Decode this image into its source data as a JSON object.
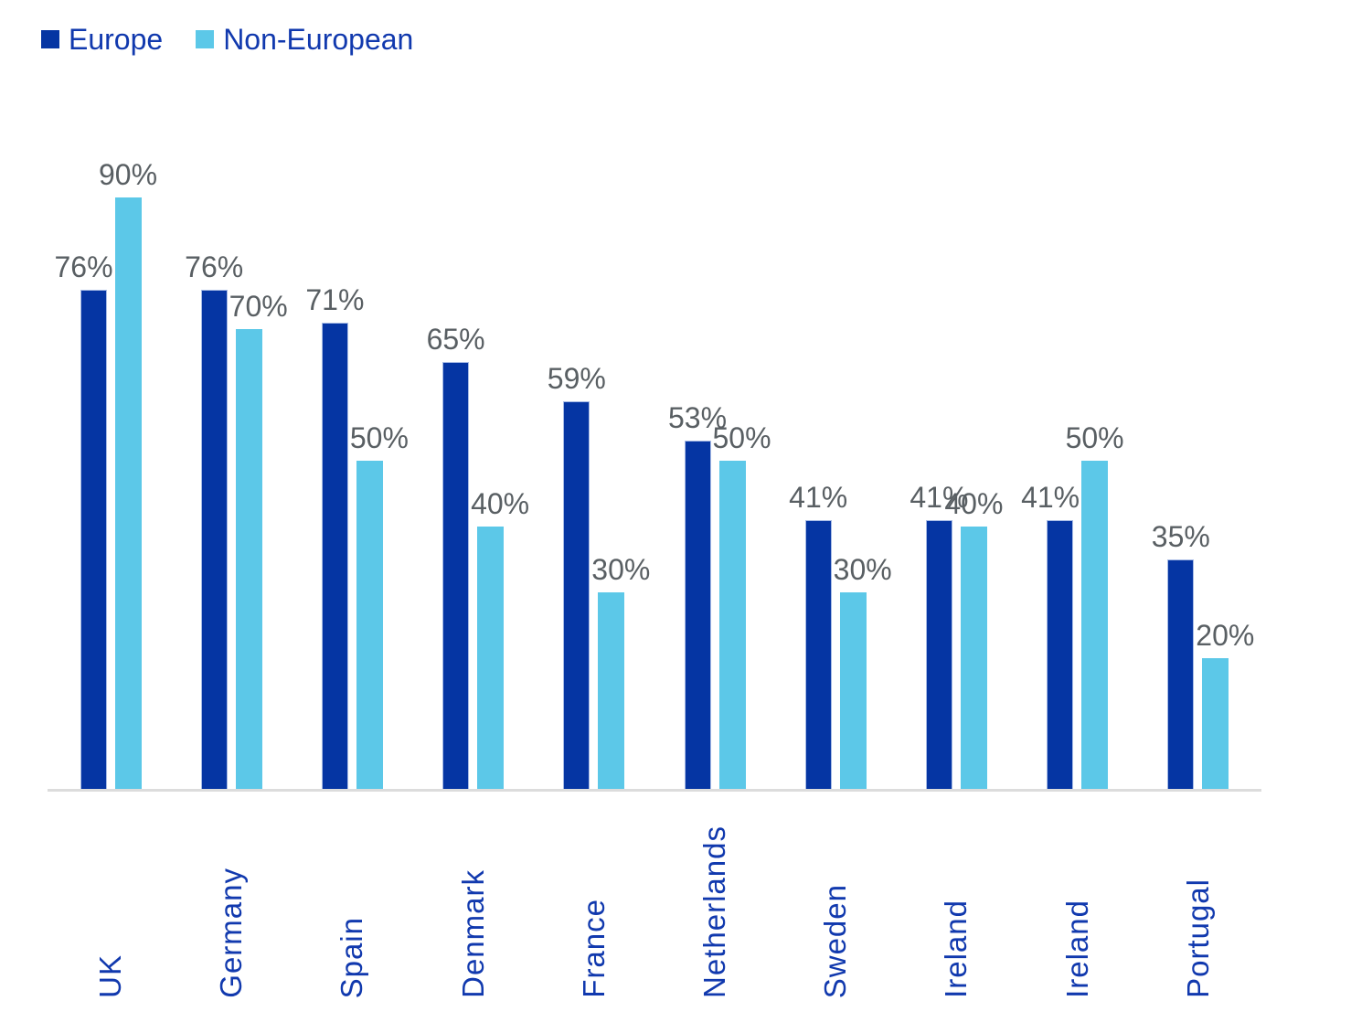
{
  "chart_data": {
    "type": "bar",
    "title": "",
    "categories": [
      "UK",
      "Germany",
      "Spain",
      "Denmark",
      "France",
      "Netherlands",
      "Sweden",
      "Ireland",
      "Ireland",
      "Portugal"
    ],
    "series": [
      {
        "name": "Europe",
        "color": "#0535A3",
        "values": [
          76,
          76,
          71,
          65,
          59,
          53,
          41,
          41,
          41,
          35
        ]
      },
      {
        "name": "Non-European",
        "color": "#5CC8E8",
        "values": [
          90,
          70,
          50,
          40,
          30,
          50,
          30,
          40,
          50,
          20
        ]
      }
    ],
    "value_suffix": "%",
    "ylim": [
      0,
      100
    ],
    "grid": false,
    "y_axis_visible": false,
    "legend_position": "top-left",
    "data_label_color": "#595F63",
    "category_label_color": "#1139AE",
    "legend_text_color": "#1139AE",
    "axis_line_color": "#DCDCDC"
  }
}
